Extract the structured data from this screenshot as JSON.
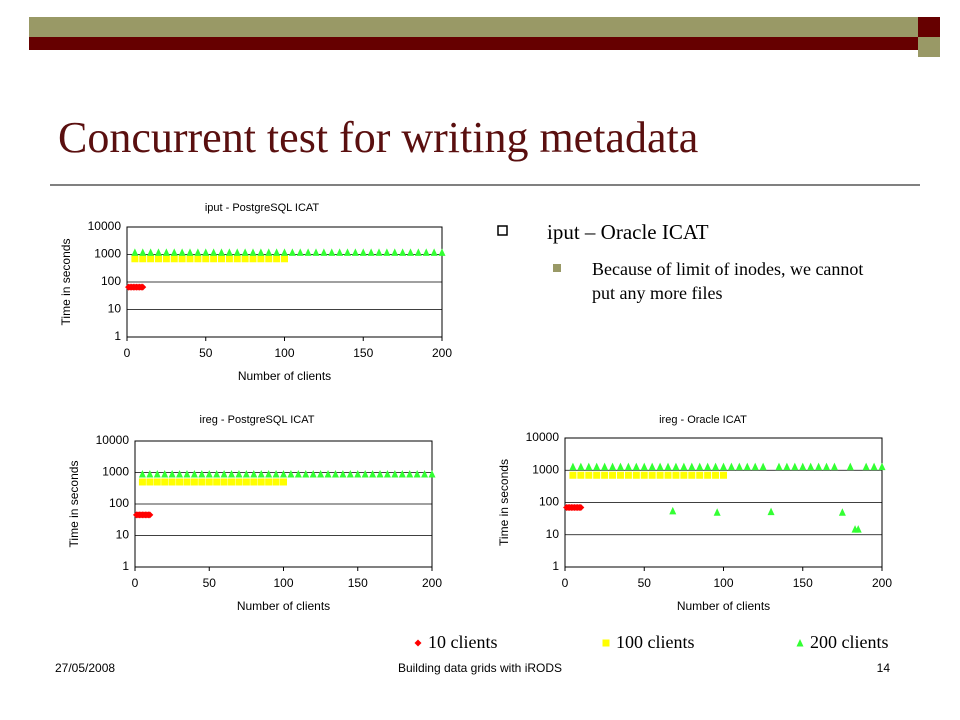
{
  "slide": {
    "title": "Concurrent test for writing metadata",
    "bullets": [
      {
        "text": "iput – Oracle ICAT",
        "sub": [
          "Because of limit of inodes, we cannot put any more files"
        ]
      }
    ]
  },
  "footer": {
    "date": "27/05/2008",
    "center": "Building data grids with iRODS",
    "page": "14"
  },
  "chart_data": [
    {
      "type": "scatter",
      "title": "iput - PostgreSQL ICAT",
      "x_label": "Number of clients",
      "y_label": "Time in seconds",
      "xlim": [
        0,
        200
      ],
      "xticks": [
        0,
        50,
        100,
        150,
        200
      ],
      "ylim": [
        1,
        10000
      ],
      "yticks": [
        1,
        10,
        100,
        1000,
        10000
      ],
      "log_y": true,
      "grid": true,
      "series": [
        {
          "color": "#ff0000",
          "marker": "diamond",
          "x": [
            1,
            2,
            3,
            4,
            5,
            6,
            7,
            8,
            9,
            10
          ],
          "values": [
            65,
            65,
            65,
            65,
            65,
            65,
            65,
            65,
            65,
            65
          ]
        },
        {
          "color": "#ffff00",
          "marker": "square",
          "x": [
            5,
            10,
            15,
            20,
            25,
            30,
            35,
            40,
            45,
            50,
            55,
            60,
            65,
            70,
            75,
            80,
            85,
            90,
            95,
            100
          ],
          "values": [
            700,
            700,
            700,
            700,
            700,
            700,
            700,
            700,
            700,
            700,
            700,
            700,
            700,
            700,
            700,
            700,
            700,
            700,
            700,
            700
          ]
        },
        {
          "color": "#33ff33",
          "marker": "triangle",
          "x": [
            5,
            10,
            15,
            20,
            25,
            30,
            35,
            40,
            45,
            50,
            55,
            60,
            65,
            70,
            75,
            80,
            85,
            90,
            95,
            100,
            105,
            110,
            115,
            120,
            125,
            130,
            135,
            140,
            145,
            150,
            155,
            160,
            165,
            170,
            175,
            180,
            185,
            190,
            195,
            200
          ],
          "values": [
            1200,
            1200,
            1200,
            1200,
            1200,
            1200,
            1200,
            1200,
            1200,
            1200,
            1200,
            1200,
            1200,
            1200,
            1200,
            1200,
            1200,
            1200,
            1200,
            1200,
            1200,
            1200,
            1200,
            1200,
            1200,
            1200,
            1200,
            1200,
            1200,
            1200,
            1200,
            1200,
            1200,
            1200,
            1200,
            1200,
            1200,
            1200,
            1200,
            1200
          ]
        }
      ]
    },
    {
      "type": "scatter",
      "title": "ireg - PostgreSQL ICAT",
      "x_label": "Number of clients",
      "y_label": "Time in seconds",
      "xlim": [
        0,
        200
      ],
      "xticks": [
        0,
        50,
        100,
        150,
        200
      ],
      "ylim": [
        1,
        10000
      ],
      "yticks": [
        1,
        10,
        100,
        1000,
        10000
      ],
      "log_y": true,
      "grid": true,
      "series": [
        {
          "color": "#ff0000",
          "marker": "diamond",
          "x": [
            1,
            2,
            3,
            4,
            5,
            6,
            7,
            8,
            9,
            10
          ],
          "values": [
            45,
            45,
            45,
            45,
            45,
            45,
            45,
            45,
            45,
            45
          ]
        },
        {
          "color": "#ffff00",
          "marker": "square",
          "x": [
            5,
            10,
            15,
            20,
            25,
            30,
            35,
            40,
            45,
            50,
            55,
            60,
            65,
            70,
            75,
            80,
            85,
            90,
            95,
            100
          ],
          "values": [
            500,
            500,
            500,
            500,
            500,
            500,
            500,
            500,
            500,
            500,
            500,
            500,
            500,
            500,
            500,
            500,
            500,
            500,
            500,
            500
          ]
        },
        {
          "color": "#33ff33",
          "marker": "triangle",
          "x": [
            5,
            10,
            15,
            20,
            25,
            30,
            35,
            40,
            45,
            50,
            55,
            60,
            65,
            70,
            75,
            80,
            85,
            90,
            95,
            100,
            105,
            110,
            115,
            120,
            125,
            130,
            135,
            140,
            145,
            150,
            155,
            160,
            165,
            170,
            175,
            180,
            185,
            190,
            195,
            200
          ],
          "values": [
            900,
            900,
            900,
            900,
            900,
            900,
            900,
            900,
            900,
            900,
            900,
            900,
            900,
            900,
            900,
            900,
            900,
            900,
            900,
            900,
            900,
            900,
            900,
            900,
            900,
            900,
            900,
            900,
            900,
            900,
            900,
            900,
            900,
            900,
            900,
            900,
            900,
            900,
            900,
            900
          ]
        }
      ]
    },
    {
      "type": "scatter",
      "title": "ireg - Oracle ICAT",
      "x_label": "Number of clients",
      "y_label": "Time in seconds",
      "xlim": [
        0,
        200
      ],
      "xticks": [
        0,
        50,
        100,
        150,
        200
      ],
      "ylim": [
        1,
        10000
      ],
      "yticks": [
        1,
        10,
        100,
        1000,
        10000
      ],
      "log_y": true,
      "grid": true,
      "series": [
        {
          "name": "10 clients",
          "color": "#ff0000",
          "marker": "diamond",
          "x": [
            1,
            2,
            3,
            4,
            5,
            6,
            7,
            8,
            9,
            10
          ],
          "values": [
            70,
            70,
            70,
            70,
            70,
            70,
            70,
            70,
            70,
            70
          ]
        },
        {
          "name": "100 clients",
          "color": "#ffff00",
          "marker": "square",
          "x": [
            5,
            10,
            15,
            20,
            25,
            30,
            35,
            40,
            45,
            50,
            55,
            60,
            65,
            70,
            75,
            80,
            85,
            90,
            95,
            100
          ],
          "values": [
            700,
            700,
            700,
            700,
            700,
            700,
            700,
            700,
            700,
            700,
            700,
            700,
            700,
            700,
            700,
            700,
            700,
            700,
            700,
            700
          ]
        },
        {
          "name": "200 clients",
          "color": "#33ff33",
          "marker": "triangle",
          "x": [
            5,
            10,
            15,
            20,
            25,
            30,
            35,
            40,
            45,
            50,
            55,
            60,
            65,
            68,
            70,
            75,
            80,
            85,
            90,
            95,
            96,
            100,
            105,
            110,
            115,
            120,
            125,
            130,
            135,
            140,
            145,
            150,
            155,
            160,
            165,
            170,
            175,
            180,
            183,
            185,
            190,
            195,
            200
          ],
          "values": [
            1300,
            1300,
            1300,
            1300,
            1300,
            1300,
            1300,
            1300,
            1300,
            1300,
            1300,
            1300,
            1300,
            55,
            1300,
            1300,
            1300,
            1300,
            1300,
            1300,
            50,
            1300,
            1300,
            1300,
            1300,
            1300,
            1300,
            52,
            1300,
            1300,
            1300,
            1300,
            1300,
            1300,
            1300,
            1300,
            50,
            1300,
            15,
            15,
            1300,
            1300,
            1300
          ]
        }
      ]
    }
  ]
}
